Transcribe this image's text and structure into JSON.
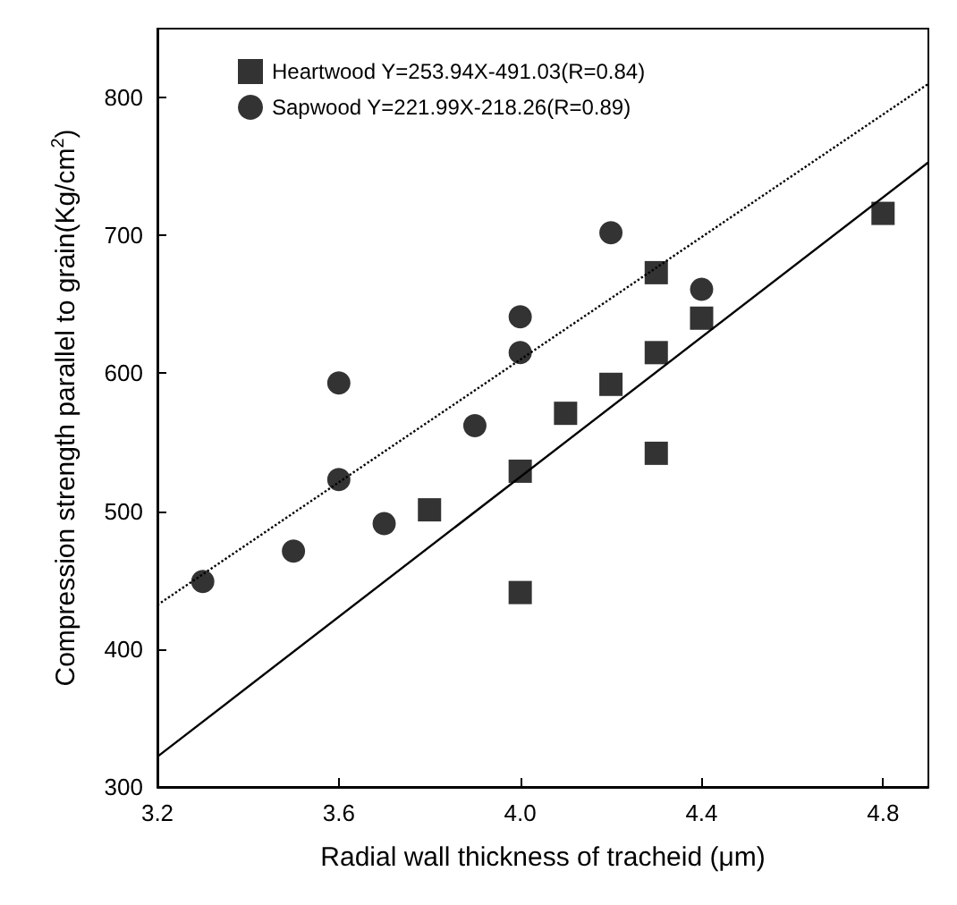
{
  "chart_data": {
    "type": "scatter",
    "xlabel": "Radial wall thickness of tracheid (μm)",
    "ylabel": "Compression strength parallel to grain(Kg/cm$^{2}$)",
    "xlim": [
      3.2,
      4.9
    ],
    "ylim": [
      300,
      850
    ],
    "xticks": [
      3.2,
      3.6,
      {
        "value": 4,
        "label": "4.0"
      },
      4.4,
      4.8
    ],
    "yticks": [
      300,
      400,
      500,
      600,
      700,
      800
    ],
    "grid": false,
    "legend": "top left",
    "series": [
      {
        "name": "Heartwood Y=253.94X-491.03(R=0.84)",
        "color": "#000000",
        "marker": "square",
        "x": [
          4.3,
          4.4,
          4.8,
          4.3,
          4.2,
          4.1,
          4.3,
          4.0,
          3.8,
          4.0
        ],
        "values": [
          673,
          640,
          716,
          615,
          592,
          571,
          542,
          529,
          501,
          441
        ]
      },
      {
        "name": "Sapwood Y=221.99X-218.26(R=0.89)",
        "color": "#000000",
        "marker": "circle",
        "x": [
          4.2,
          4.4,
          4.0,
          4.0,
          3.6,
          3.9,
          3.6,
          3.7,
          3.5,
          3.3
        ],
        "values": [
          702,
          661,
          641,
          615,
          593,
          562,
          523,
          491,
          471,
          449
        ]
      },
      {
        "type": "line",
        "color": "#000000",
        "marker": "none",
        "line_style": "solid",
        "x": [
          3.2,
          4.9
        ],
        "values": [
          322,
          753
        ]
      },
      {
        "type": "line",
        "color": "#000000",
        "marker": "none",
        "line_style": "dotted",
        "x": [
          3.2,
          4.9
        ],
        "values": [
          432,
          810
        ]
      }
    ]
  }
}
